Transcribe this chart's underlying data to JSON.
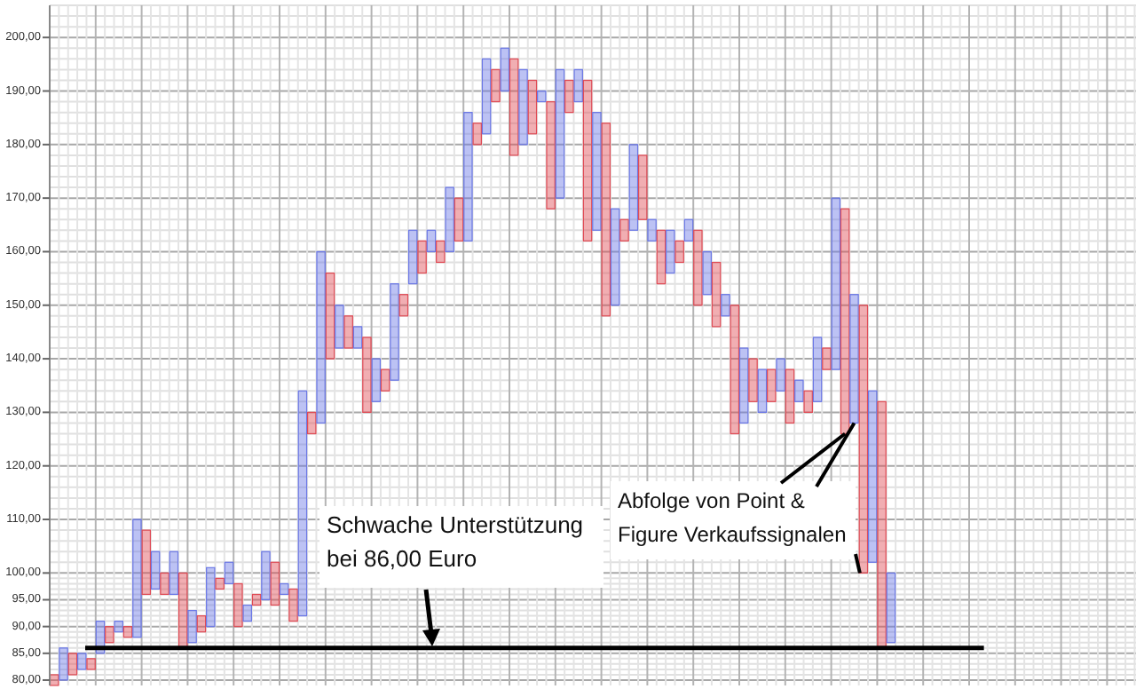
{
  "chart_data": {
    "type": "bar",
    "categories": [
      null,
      null,
      null,
      null,
      null,
      null,
      null,
      null,
      null,
      null,
      null,
      null,
      null,
      null,
      null,
      null,
      null,
      null,
      null,
      null,
      null,
      null,
      null,
      null,
      null,
      null,
      null,
      null,
      null,
      null,
      null,
      null,
      null,
      null,
      null,
      null,
      null,
      null,
      null,
      null,
      null,
      null,
      null,
      null,
      null,
      null,
      null,
      null,
      null,
      null,
      null,
      null,
      null,
      null,
      null,
      null,
      null,
      null,
      null,
      null,
      null,
      null,
      null,
      null,
      null,
      null,
      null,
      null,
      null,
      null,
      null,
      null,
      null,
      null,
      null,
      null,
      null,
      null,
      null,
      null,
      null,
      null,
      null,
      null,
      null,
      null,
      null,
      null,
      null,
      null,
      null,
      null
    ],
    "ylim": [
      79,
      206
    ],
    "yticks": [
      {
        "value": 80,
        "label": "80,00"
      },
      {
        "value": 85,
        "label": "85,00"
      },
      {
        "value": 90,
        "label": "90,00"
      },
      {
        "value": 95,
        "label": "95,00"
      },
      {
        "value": 100,
        "label": "100,00"
      },
      {
        "value": 110,
        "label": "110,00"
      },
      {
        "value": 120,
        "label": "120,00"
      },
      {
        "value": 130,
        "label": "130,00"
      },
      {
        "value": 140,
        "label": "140,00"
      },
      {
        "value": 150,
        "label": "150,00"
      },
      {
        "value": 160,
        "label": "160,00"
      },
      {
        "value": 170,
        "label": "170,00"
      },
      {
        "value": 180,
        "label": "180,00"
      },
      {
        "value": 190,
        "label": "190,00"
      },
      {
        "value": 200,
        "label": "200,00"
      }
    ],
    "tick_labels": "y",
    "grid": true,
    "base": [
      79,
      80,
      81,
      82,
      82,
      85,
      87,
      89,
      88,
      88,
      96,
      97,
      96,
      96,
      86,
      87,
      89,
      90,
      97,
      98,
      90,
      91,
      94,
      95,
      94,
      96,
      91,
      92,
      126,
      128,
      140,
      142,
      142,
      142,
      130,
      132,
      134,
      136,
      148,
      154,
      156,
      160,
      158,
      160,
      162,
      162,
      180,
      182,
      188,
      190,
      178,
      180,
      182,
      188,
      168,
      170,
      186,
      188,
      162,
      164,
      148,
      150,
      162,
      164,
      166,
      162,
      154,
      156,
      158,
      162,
      150,
      152,
      146,
      148,
      126,
      128,
      132,
      130,
      132,
      134,
      128,
      132,
      130,
      132,
      138,
      138,
      126,
      128,
      100,
      102,
      86,
      87
    ],
    "values": [
      2,
      6,
      4,
      3,
      2,
      6,
      3,
      2,
      2,
      22,
      12,
      7,
      4,
      8,
      14,
      6,
      3,
      11,
      2,
      4,
      8,
      3,
      2,
      9,
      8,
      2,
      6,
      42,
      4,
      32,
      16,
      8,
      6,
      4,
      14,
      8,
      4,
      18,
      4,
      10,
      6,
      4,
      4,
      12,
      8,
      24,
      4,
      14,
      6,
      8,
      18,
      14,
      10,
      2,
      20,
      24,
      6,
      6,
      30,
      22,
      36,
      18,
      4,
      16,
      12,
      4,
      10,
      8,
      4,
      4,
      14,
      8,
      12,
      4,
      24,
      14,
      8,
      8,
      6,
      6,
      10,
      4,
      4,
      12,
      4,
      32,
      42,
      24,
      50,
      32,
      46,
      13
    ],
    "colors": [
      "#e04b55",
      "#6b78e6",
      "#e04b55",
      "#6b78e6",
      "#e04b55",
      "#6b78e6",
      "#e04b55",
      "#6b78e6",
      "#e04b55",
      "#6b78e6",
      "#e04b55",
      "#6b78e6",
      "#e04b55",
      "#6b78e6",
      "#e04b55",
      "#6b78e6",
      "#e04b55",
      "#6b78e6",
      "#e04b55",
      "#6b78e6",
      "#e04b55",
      "#6b78e6",
      "#e04b55",
      "#6b78e6",
      "#e04b55",
      "#6b78e6",
      "#e04b55",
      "#6b78e6",
      "#e04b55",
      "#6b78e6",
      "#e04b55",
      "#6b78e6",
      "#e04b55",
      "#6b78e6",
      "#e04b55",
      "#6b78e6",
      "#e04b55",
      "#6b78e6",
      "#e04b55",
      "#6b78e6",
      "#e04b55",
      "#6b78e6",
      "#e04b55",
      "#6b78e6",
      "#e04b55",
      "#6b78e6",
      "#e04b55",
      "#6b78e6",
      "#e04b55",
      "#6b78e6",
      "#e04b55",
      "#6b78e6",
      "#e04b55",
      "#6b78e6",
      "#e04b55",
      "#6b78e6",
      "#e04b55",
      "#6b78e6",
      "#e04b55",
      "#6b78e6",
      "#e04b55",
      "#6b78e6",
      "#e04b55",
      "#6b78e6",
      "#e04b55",
      "#6b78e6",
      "#e04b55",
      "#6b78e6",
      "#e04b55",
      "#6b78e6",
      "#e04b55",
      "#6b78e6",
      "#e04b55",
      "#6b78e6",
      "#e04b55",
      "#6b78e6",
      "#e04b55",
      "#6b78e6",
      "#e04b55",
      "#6b78e6",
      "#e04b55",
      "#6b78e6",
      "#e04b55",
      "#6b78e6",
      "#e04b55",
      "#6b78e6",
      "#e04b55",
      "#6b78e6",
      "#e04b55",
      "#6b78e6",
      "#e04b55",
      "#6b78e6"
    ],
    "ref_lines": [
      {
        "axis": "y",
        "value": 86,
        "color": "#000000"
      }
    ],
    "annotations": [
      "Schwache Unterstützung\nbei 86,00 Euro",
      "Abfolge von Point &\nFigure Verkaufssignalen"
    ]
  }
}
